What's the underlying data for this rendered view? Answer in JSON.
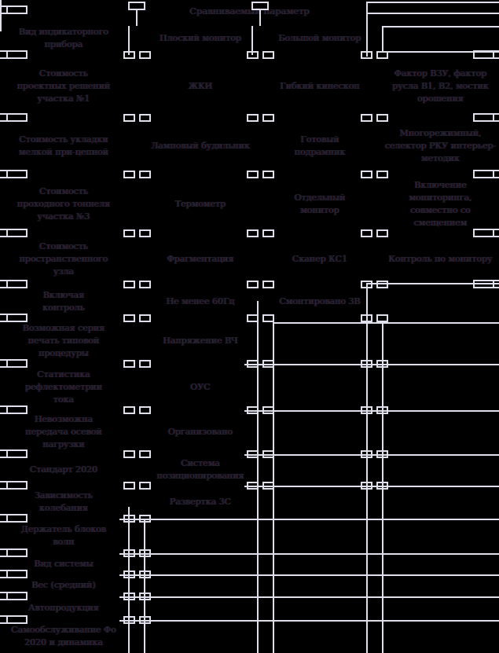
{
  "page": {
    "background_color": "#000000",
    "text_color": "#262635",
    "grid_color": "#dfdfeb"
  },
  "table": {
    "title": "Сравниваемый параметр",
    "rows": [
      {
        "cells": [
          "Вид индикаторного\nприбора",
          "Плоский монитор",
          "Большой монитор",
          ""
        ]
      },
      {
        "cells": [
          "Стоимость\nпроектных решений\nучастка №1",
          "ЖКИ",
          "Гибкий кинескоп",
          "Фактор ВЗУ, фактор\nрусла В1, В2, мостик\nорошения"
        ]
      },
      {
        "cells": [
          "Стоимость укладки\nмелкой при-цепной",
          "Ламповый будильник",
          "Готовый подрамник",
          "Многорежимный,\nселектор РКУ интерьер-\nметодик"
        ]
      },
      {
        "cells": [
          "Стоимость\nпроходного тоннеля\nучастка №3",
          "Термометр",
          "Отдельный\nмонитор",
          "Включение мониторинга,\nсовместно со смещением"
        ]
      },
      {
        "cells": [
          "Стоимость\nпространственного\nузла",
          "Фрагментация",
          "Сканер КС1",
          "Контроль по монитору"
        ]
      },
      {
        "cells": [
          "Включая\nконтроль",
          "Не менее 60Гц",
          "Смонтировано 3В",
          ""
        ]
      },
      {
        "cells": [
          "Возможная серия\nпечать типовой\nпроцедуры",
          "Напряжение ВЧ",
          "",
          ""
        ]
      },
      {
        "cells": [
          "Статистика\nрефлектометрии\nтока",
          "ОУС",
          "",
          ""
        ]
      },
      {
        "cells": [
          "Невозможна\nпередача осевой\nнагрузки",
          "Организовано",
          "",
          ""
        ]
      },
      {
        "cells": [
          "Стандарт 2020",
          "Система\nпозиционирования",
          "",
          ""
        ]
      },
      {
        "cells": [
          "Зависимость\nколебания",
          "Развертка 3С",
          "",
          ""
        ]
      },
      {
        "cells": [
          "Держатель блоков\nволн",
          "",
          "",
          ""
        ]
      },
      {
        "cells": [
          "Вид системы",
          "",
          "",
          ""
        ]
      },
      {
        "cells": [
          "Вес (средний)",
          "",
          "",
          ""
        ]
      },
      {
        "cells": [
          "Автопродукция",
          "",
          "",
          ""
        ]
      },
      {
        "cells": [
          "Самообслуживание Фо\n2020 и динамика",
          "",
          "",
          ""
        ]
      }
    ]
  }
}
